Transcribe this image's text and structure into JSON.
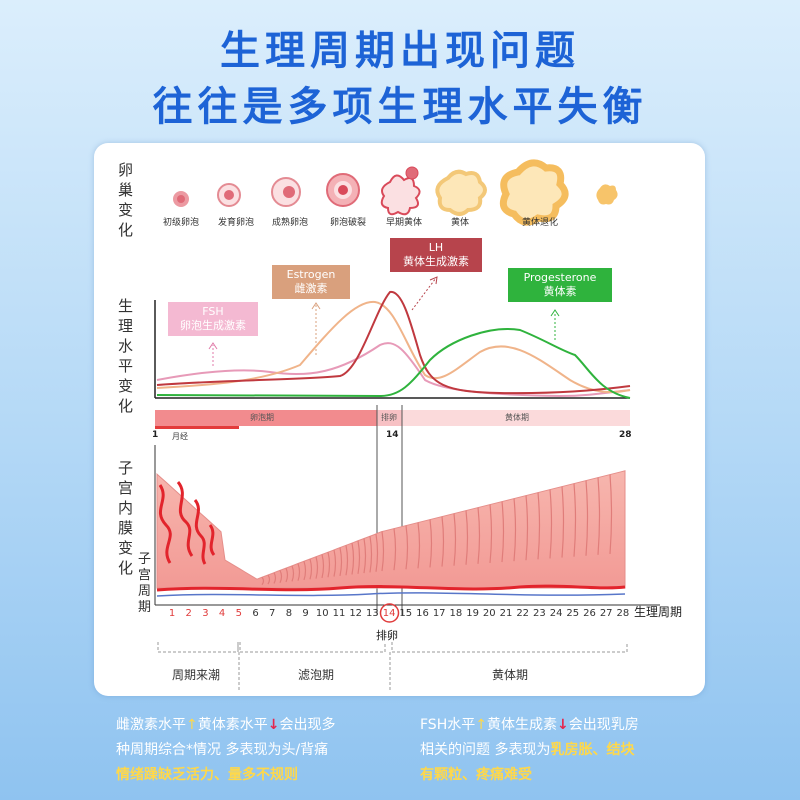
{
  "title_line1": "生理周期出现问题",
  "title_line2": "往往是多项生理水平失衡",
  "labels": {
    "ovary": "卵巢变化",
    "level": "生理水平变化",
    "endometrium": "子宫内膜变化",
    "uterine_cycle": "子宫周期"
  },
  "stages": [
    "初级卵泡",
    "发育卵泡",
    "成熟卵泡",
    "卵泡破裂",
    "早期黄体",
    "黄体",
    "黄体退化"
  ],
  "hormones": {
    "fsh": {
      "name": "FSH",
      "desc": "卵泡生成激素",
      "color": "#e07aa8"
    },
    "estrogen": {
      "name": "Estrogen",
      "desc": "雌激素",
      "color": "#f0a877"
    },
    "lh": {
      "name": "LH",
      "desc": "黄体生成激素",
      "color": "#c0393f"
    },
    "progesterone": {
      "name": "Progesterone",
      "desc": "黄体素",
      "color": "#2fb33d"
    }
  },
  "phase_bar": {
    "follicular": "卵泡期",
    "ovulation": "排卵",
    "luteal": "黄体期",
    "menses": "月经",
    "day_start": "1",
    "day_mid": "14",
    "day_end": "28"
  },
  "days": [
    "1",
    "2",
    "3",
    "4",
    "5",
    "6",
    "7",
    "8",
    "9",
    "10",
    "11",
    "12",
    "13",
    "14",
    "15",
    "16",
    "17",
    "18",
    "19",
    "20",
    "21",
    "22",
    "23",
    "24",
    "25",
    "26",
    "27",
    "28"
  ],
  "axis_label": "生理周期",
  "ovulation_label": "排卵",
  "phases": [
    "周期来潮",
    "滤泡期",
    "黄体期"
  ],
  "bottom_left": {
    "l1a": "雌激素水平",
    "l1b": "黄体素水平",
    "l1c": "会出现多",
    "l2": "种周期综合*情况  多表现为头/背痛",
    "l3": "情绪躁缺乏活力、量多不规则"
  },
  "bottom_right": {
    "l1a": "FSH水平",
    "l1b": "黄体生成素",
    "l1c": "会出现乳房",
    "l2a": "相关的问题  多表现为",
    "l2b": "乳房胀、结块",
    "l3": "有颗粒、疼痛难受"
  },
  "arrows": {
    "up": "↑",
    "down": "↓"
  },
  "colors": {
    "title": "#1d63d6",
    "card_border": "#2a73d9"
  }
}
